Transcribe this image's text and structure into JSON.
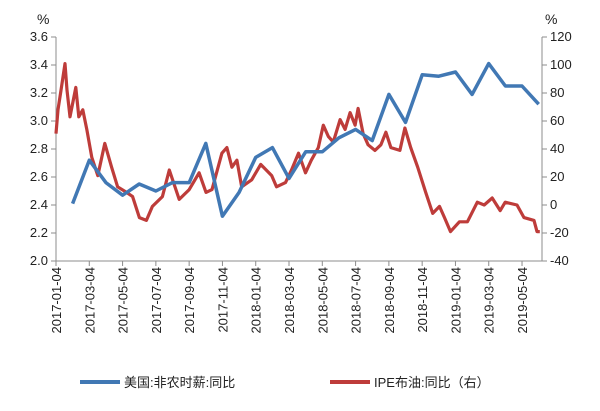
{
  "chart_data": {
    "type": "line",
    "title": "",
    "x_unit": "months since 2017-01-04",
    "x_tick_labels": [
      "2017-01-04",
      "2017-03-04",
      "2017-05-04",
      "2017-07-04",
      "2017-09-04",
      "2017-11-04",
      "2018-01-04",
      "2018-03-04",
      "2018-05-04",
      "2018-07-04",
      "2018-09-04",
      "2018-11-04",
      "2019-01-04",
      "2019-03-04",
      "2019-05-04"
    ],
    "x_tick_months": [
      0,
      2,
      4,
      6,
      8,
      10,
      12,
      14,
      16,
      18,
      20,
      22,
      24,
      26,
      28
    ],
    "xlim": [
      0,
      29.2
    ],
    "y_left": {
      "label": "%",
      "lim": [
        2.0,
        3.6
      ],
      "ticks": [
        "2.0",
        "2.2",
        "2.4",
        "2.6",
        "2.8",
        "3.0",
        "3.2",
        "3.4",
        "3.6"
      ]
    },
    "y_right": {
      "label": "%",
      "lim": [
        -40,
        120
      ],
      "ticks": [
        "-40",
        "-20",
        "0",
        "20",
        "40",
        "60",
        "80",
        "100",
        "120"
      ]
    },
    "grid": false,
    "legend_position": "bottom",
    "series": [
      {
        "name": "美国:非农时薪:同比",
        "axis": "left",
        "color": "#4178B4",
        "x": [
          1,
          2,
          3,
          4,
          5,
          6,
          7,
          8,
          9,
          10,
          11,
          12,
          13,
          14,
          15,
          16,
          17,
          18,
          19,
          20,
          21,
          22,
          23,
          24,
          25,
          26,
          27,
          28,
          29
        ],
        "y": [
          2.41,
          2.72,
          2.56,
          2.47,
          2.55,
          2.5,
          2.56,
          2.56,
          2.84,
          2.32,
          2.49,
          2.74,
          2.81,
          2.59,
          2.78,
          2.78,
          2.88,
          2.94,
          2.86,
          3.19,
          2.99,
          3.33,
          3.32,
          3.35,
          3.19,
          3.41,
          3.25,
          3.25,
          3.12
        ]
      },
      {
        "name": "IPE布油:同比（右）",
        "axis": "right",
        "color": "#BE3C3A",
        "x": [
          0,
          0.12,
          0.3,
          0.54,
          0.66,
          0.84,
          1.19,
          1.37,
          1.61,
          1.85,
          2.15,
          2.51,
          2.93,
          3.34,
          3.7,
          4.24,
          4.6,
          5.01,
          5.43,
          5.79,
          6.39,
          6.81,
          7.4,
          8.0,
          8.6,
          9.01,
          9.37,
          9.97,
          10.27,
          10.57,
          10.87,
          11.16,
          11.76,
          12.3,
          12.96,
          13.25,
          13.79,
          14.15,
          14.57,
          14.99,
          15.34,
          15.76,
          16.06,
          16.36,
          16.66,
          17.07,
          17.37,
          17.67,
          17.97,
          18.15,
          18.45,
          18.75,
          19.16,
          19.52,
          19.82,
          20.12,
          20.66,
          20.96,
          21.31,
          21.73,
          22.21,
          22.63,
          23.04,
          23.34,
          23.7,
          24.24,
          24.72,
          25.31,
          25.73,
          26.21,
          26.69,
          26.99,
          27.7,
          28.12,
          28.72,
          28.9,
          29.07
        ],
        "y": [
          51,
          68,
          82,
          101,
          82,
          63,
          84,
          63,
          68,
          54,
          34,
          21,
          44,
          27,
          13,
          9,
          6,
          -9,
          -11,
          -1,
          6,
          25,
          4,
          11,
          23,
          9,
          11,
          37,
          41,
          27,
          32,
          13,
          18,
          29,
          21,
          13,
          16,
          25,
          37,
          23,
          32,
          41,
          57,
          49,
          45,
          61,
          54,
          66,
          57,
          69,
          51,
          43,
          39,
          43,
          52,
          41,
          39,
          55,
          41,
          27,
          9,
          -6,
          -1,
          -9,
          -19,
          -12,
          -12,
          2,
          0,
          5,
          -4,
          2,
          0,
          -9,
          -11,
          -19,
          -19
        ]
      }
    ]
  }
}
